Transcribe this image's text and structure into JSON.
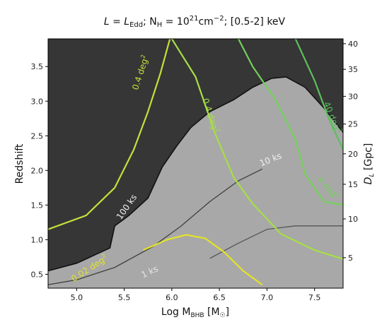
{
  "chart_data": {
    "type": "heatmap",
    "title": {
      "l": "L = L",
      "l_sub": "Edd",
      "nh": "; N",
      "nh_sub": "H",
      "eq": " = 10",
      "exp": "21",
      "unit": "cm",
      "unit_exp": "−2",
      "band": "; [0.5-2] keV"
    },
    "xlabel": {
      "main": "Log M",
      "sub": "BHB",
      "unit": " [M",
      "unit_sub": "☉",
      "close": "]"
    },
    "ylabel": "Redshift",
    "y2label": {
      "main": "D",
      "sub": "L",
      "unit": " [Gpc]"
    },
    "xlim": [
      4.7,
      7.8
    ],
    "ylim": [
      0.3,
      3.9
    ],
    "xticks": [
      "5.0",
      "5.5",
      "6.0",
      "6.5",
      "7.0",
      "7.5"
    ],
    "yticks": [
      "0.5",
      "1.0",
      "1.5",
      "2.0",
      "2.5",
      "3.0",
      "3.5"
    ],
    "y2ticks": [
      "5",
      "10",
      "15",
      "20",
      "25",
      "30",
      "35",
      "40"
    ],
    "background": {
      "dark": "#363636",
      "light": "#a8a8a8"
    },
    "exposure_contours": [
      {
        "label": "1 ks",
        "color": "#555555",
        "points": [
          [
            6.4,
            0.73
          ],
          [
            6.7,
            0.95
          ],
          [
            7.0,
            1.15
          ],
          [
            7.3,
            1.2
          ],
          [
            7.6,
            1.2
          ],
          [
            7.8,
            1.2
          ]
        ]
      },
      {
        "label": "10 ks",
        "color": "#3f3f3f",
        "points": [
          [
            4.7,
            0.35
          ],
          [
            5.0,
            0.42
          ],
          [
            5.4,
            0.6
          ],
          [
            5.8,
            0.9
          ],
          [
            6.1,
            1.2
          ],
          [
            6.4,
            1.55
          ],
          [
            6.7,
            1.85
          ],
          [
            6.95,
            2.02
          ]
        ]
      },
      {
        "label": "100 ks",
        "color": "#111111",
        "points": [
          [
            4.7,
            0.55
          ],
          [
            5.0,
            0.66
          ],
          [
            5.35,
            0.88
          ],
          [
            5.4,
            1.2
          ],
          [
            5.55,
            1.35
          ],
          [
            5.75,
            1.6
          ],
          [
            5.9,
            2.05
          ],
          [
            6.05,
            2.35
          ],
          [
            6.2,
            2.62
          ],
          [
            6.4,
            2.85
          ],
          [
            6.65,
            3.02
          ],
          [
            6.85,
            3.2
          ],
          [
            7.05,
            3.33
          ],
          [
            7.2,
            3.35
          ],
          [
            7.4,
            3.2
          ],
          [
            7.6,
            2.9
          ],
          [
            7.8,
            2.55
          ]
        ]
      }
    ],
    "area_contours": [
      {
        "label": "0.02 deg²",
        "text": "0.02 deg",
        "exp": "2",
        "color": "#e3e32a",
        "points": [
          [
            5.7,
            0.85
          ],
          [
            5.95,
            1.0
          ],
          [
            6.15,
            1.07
          ],
          [
            6.35,
            1.02
          ],
          [
            6.55,
            0.82
          ],
          [
            6.75,
            0.55
          ],
          [
            6.95,
            0.35
          ]
        ]
      },
      {
        "label": "0.4 deg²",
        "text": "0.4 deg",
        "exp": "2",
        "color": "#c2e03a",
        "points": [
          [
            4.7,
            1.15
          ],
          [
            5.1,
            1.35
          ],
          [
            5.4,
            1.75
          ],
          [
            5.6,
            2.3
          ],
          [
            5.75,
            2.85
          ],
          [
            5.88,
            3.4
          ],
          [
            5.98,
            3.9
          ]
        ]
      },
      {
        "label": "0.4 deg²",
        "text": "0.4 deg",
        "exp": "2",
        "color": "#a6df46",
        "points": [
          [
            6.0,
            3.9
          ],
          [
            6.25,
            3.35
          ],
          [
            6.45,
            2.55
          ],
          [
            6.65,
            1.9
          ],
          [
            6.85,
            1.52
          ],
          [
            7.15,
            1.08
          ],
          [
            7.5,
            0.85
          ],
          [
            7.8,
            0.72
          ]
        ]
      },
      {
        "label": "4 deg²",
        "text": "4 deg",
        "exp": "2",
        "color": "#74d05a",
        "points": [
          [
            6.7,
            3.9
          ],
          [
            6.85,
            3.5
          ],
          [
            7.1,
            3.0
          ],
          [
            7.3,
            2.45
          ],
          [
            7.4,
            1.95
          ],
          [
            7.6,
            1.55
          ],
          [
            7.8,
            1.5
          ]
        ]
      },
      {
        "label": "40 deg²",
        "text": "40 deg",
        "exp": "2",
        "color": "#5cbf5c",
        "points": [
          [
            7.3,
            3.9
          ],
          [
            7.5,
            3.3
          ],
          [
            7.65,
            2.75
          ],
          [
            7.8,
            2.3
          ]
        ]
      }
    ]
  }
}
